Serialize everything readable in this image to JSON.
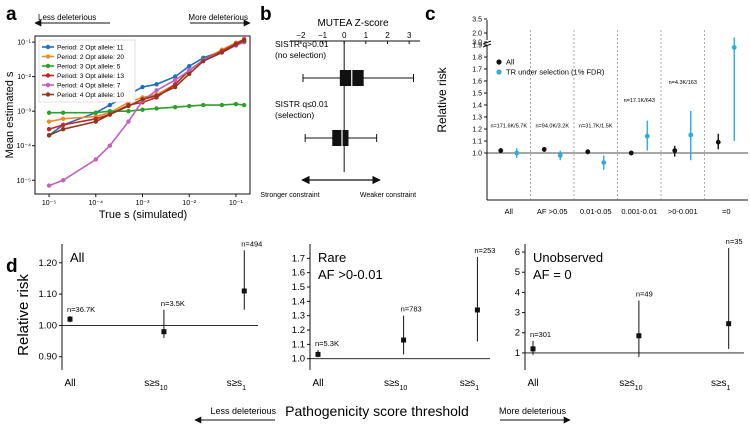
{
  "panel_labels": {
    "a": "a",
    "b": "b",
    "c": "c",
    "d": "d"
  },
  "colors": {
    "blue": "#1f6fc0",
    "orange": "#f08a24",
    "green": "#2ca02c",
    "red": "#c8242b",
    "purple": "#c060c0",
    "brown": "#8b3a1f",
    "cyan": "#29aee0",
    "black": "#111111"
  },
  "chart_data": [
    {
      "id": "a",
      "type": "line",
      "xlabel": "True s (simulated)",
      "ylabel": "Mean estimated s",
      "xscale": "log",
      "yscale": "log",
      "xlim": [
        5e-06,
        0.2
      ],
      "ylim": [
        4e-06,
        0.15
      ],
      "xticks": [
        {
          "v": 1e-05,
          "label": "10⁻⁵"
        },
        {
          "v": 0.0001,
          "label": "10⁻⁴"
        },
        {
          "v": 0.001,
          "label": "10⁻³"
        },
        {
          "v": 0.01,
          "label": "10⁻²"
        },
        {
          "v": 0.1,
          "label": "10⁻¹"
        }
      ],
      "yticks": [
        {
          "v": 1e-05,
          "label": "10⁻⁵"
        },
        {
          "v": 0.0001,
          "label": "10⁻⁴"
        },
        {
          "v": 0.001,
          "label": "10⁻³"
        },
        {
          "v": 0.01,
          "label": "10⁻²"
        },
        {
          "v": 0.1,
          "label": "10⁻¹"
        }
      ],
      "arrow_left": "Less deleterious",
      "arrow_right": "More deleterious",
      "x": [
        1e-05,
        2e-05,
        0.0001,
        0.0002,
        0.0005,
        0.001,
        0.002,
        0.005,
        0.01,
        0.02,
        0.05,
        0.1,
        0.15
      ],
      "series": [
        {
          "name": "Period: 2 Opt allele: 11",
          "color": "#1f6fc0",
          "values": [
            0.0002,
            0.0004,
            0.0009,
            0.0015,
            0.003,
            0.005,
            0.006,
            0.01,
            0.02,
            0.035,
            0.055,
            0.08,
            0.1
          ]
        },
        {
          "name": "Period: 2 Opt allele: 20",
          "color": "#f08a24",
          "values": [
            0.0005,
            0.0006,
            0.0007,
            0.0009,
            0.0018,
            0.0025,
            0.003,
            0.006,
            0.015,
            0.03,
            0.06,
            0.095,
            0.12
          ]
        },
        {
          "name": "Period: 3 Opt allele: 5",
          "color": "#2ca02c",
          "values": [
            0.0009,
            0.0009,
            0.0009,
            0.001,
            0.001,
            0.0011,
            0.0012,
            0.0013,
            0.0014,
            0.0015,
            0.0015,
            0.0016,
            0.0015
          ]
        },
        {
          "name": "Period: 3 Opt allele: 13",
          "color": "#c8242b",
          "values": [
            0.0003,
            0.0004,
            0.0006,
            0.0008,
            0.0015,
            0.0018,
            0.0025,
            0.006,
            0.015,
            0.03,
            0.055,
            0.09,
            0.12
          ]
        },
        {
          "name": "Period: 4 Opt allele: 7",
          "color": "#c060c0",
          "values": [
            7e-06,
            1e-05,
            4e-05,
            0.0001,
            0.0005,
            0.002,
            0.004,
            0.008,
            0.015,
            0.03,
            0.05,
            0.08,
            0.1
          ]
        },
        {
          "name": "Period: 4 Opt allele: 10",
          "color": "#8b3a1f",
          "values": [
            0.0002,
            0.0003,
            0.0005,
            0.0008,
            0.0014,
            0.0022,
            0.0028,
            0.005,
            0.012,
            0.028,
            0.05,
            0.085,
            0.11
          ]
        }
      ]
    },
    {
      "id": "b",
      "type": "boxplot",
      "title": "MUTEA Z-score",
      "xlim": [
        -2.5,
        3.5
      ],
      "xticks": [
        -2,
        -1,
        0,
        1,
        2,
        3
      ],
      "xticklabels": [
        "−2",
        "−1",
        "0",
        "1",
        "2",
        "3"
      ],
      "boxes": [
        {
          "label1": "SISTR q>0.01",
          "label2": "(no selection)",
          "whisker_low": -1.9,
          "q1": -0.2,
          "median": 0.35,
          "q3": 0.9,
          "whisker_high": 3.2
        },
        {
          "label1": "SISTR q≤0.01",
          "label2": "(selection)",
          "whisker_low": -1.8,
          "q1": -0.55,
          "median": -0.1,
          "q3": 0.2,
          "whisker_high": 1.5
        }
      ],
      "arrow_left": "Stronger constraint",
      "arrow_right": "Weaker constraint"
    },
    {
      "id": "c",
      "type": "errorbar",
      "ylabel": "Relative risk",
      "categories": [
        "All",
        "AF >0.05",
        "0.01-0.05",
        "0.001-0.01",
        ">0-0.001",
        "=0"
      ],
      "yticks_lower": [
        "1.0",
        "1.1",
        "1.2",
        "1.3",
        "1.4",
        "1.5",
        "1.6",
        "1.7",
        "1.8",
        "1.9",
        "2.0"
      ],
      "yticks_upper": [
        "3.0",
        "3.5",
        "4.0"
      ],
      "legend": [
        "All",
        "TR under selection (1% FDR)"
      ],
      "series": [
        {
          "name": "All",
          "color": "#111111",
          "values": [
            1.02,
            1.03,
            1.01,
            1.0,
            1.02,
            1.09
          ],
          "lower": [
            1.0,
            1.01,
            0.99,
            0.98,
            0.97,
            1.03
          ],
          "upper": [
            1.04,
            1.05,
            1.03,
            1.02,
            1.06,
            1.16
          ]
        },
        {
          "name": "TR under selection (1% FDR)",
          "color": "#29aee0",
          "values": [
            1.0,
            0.98,
            0.92,
            1.14,
            1.15,
            1.88
          ],
          "lower": [
            0.96,
            0.94,
            0.86,
            1.02,
            0.94,
            1.1
          ],
          "upper": [
            1.04,
            1.02,
            0.98,
            1.27,
            1.35,
            3.1
          ]
        }
      ],
      "annotations": [
        "n=171.6K/5.7K",
        "n=94.0K/3.2K",
        "n=31.7K/1.5K",
        "n=17.1K/643",
        "n=4.3K/163",
        "n=2.6K/49"
      ],
      "y_annotations": [
        1.18,
        1.18,
        1.18,
        1.39,
        1.54,
        3.95
      ]
    },
    {
      "id": "d",
      "type": "errorbar",
      "ylabel": "Relative risk",
      "xlabel": "Pathogenicity score threshold",
      "arrow_left": "Less deleterious",
      "arrow_right": "More deleterious",
      "categories": [
        "All",
        "s≥s10",
        "s≥s1"
      ],
      "subplots": [
        {
          "title1": "All",
          "title2": "",
          "ylim": [
            0.88,
            1.26
          ],
          "yticks": [
            0.9,
            1.0,
            1.1,
            1.2
          ],
          "yticklabels": [
            "0.90",
            "1.00",
            "1.10",
            "1.20"
          ],
          "values": [
            1.02,
            0.98,
            1.11
          ],
          "lower": [
            1.01,
            0.96,
            1.05
          ],
          "upper": [
            1.03,
            1.05,
            1.24
          ],
          "annotations": [
            "n=36.7K",
            "n=3.5K",
            "n=494"
          ]
        },
        {
          "title1": "Rare",
          "title2": "AF >0-0.01",
          "ylim": [
            0.97,
            1.8
          ],
          "yticks": [
            1.0,
            1.1,
            1.2,
            1.3,
            1.4,
            1.5,
            1.6,
            1.7
          ],
          "yticklabels": [
            "1.0",
            "1.1",
            "1.2",
            "1.3",
            "1.4",
            "1.5",
            "1.6",
            "1.7"
          ],
          "values": [
            1.03,
            1.13,
            1.34
          ],
          "lower": [
            1.01,
            1.03,
            1.12
          ],
          "upper": [
            1.06,
            1.3,
            1.71
          ],
          "annotations": [
            "n=5.3K",
            "n=783",
            "n=253"
          ]
        },
        {
          "title1": "Unobserved",
          "title2": "AF = 0",
          "ylim": [
            0.5,
            6.4
          ],
          "yticks": [
            1,
            2,
            3,
            4,
            5,
            6
          ],
          "yticklabels": [
            "1",
            "2",
            "3",
            "4",
            "5",
            "6"
          ],
          "values": [
            1.2,
            1.85,
            2.45
          ],
          "lower": [
            0.9,
            0.8,
            1.2
          ],
          "upper": [
            1.6,
            3.6,
            6.2
          ],
          "annotations": [
            "n=301",
            "n=49",
            "n=35"
          ]
        }
      ]
    }
  ]
}
